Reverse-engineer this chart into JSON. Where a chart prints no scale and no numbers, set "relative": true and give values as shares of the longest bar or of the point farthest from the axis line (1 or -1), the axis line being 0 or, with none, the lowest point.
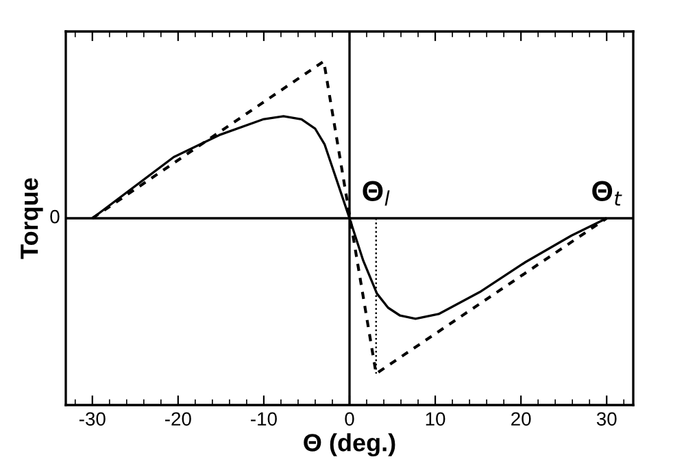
{
  "chart_data": {
    "type": "line",
    "relative": true,
    "xlabel": "Θ (deg.)",
    "ylabel": "Torque",
    "xlim": [
      -33.1,
      33.1
    ],
    "xticks": [
      -30,
      -20,
      -10,
      0,
      10,
      20,
      30
    ],
    "series": [
      {
        "color": "#000000",
        "line_style": "solid",
        "x": [
          -30,
          -20.5,
          -15.2,
          -10.1,
          -7.7,
          -5.6,
          -4,
          -2.9,
          -1.6,
          0,
          1.6,
          3.2,
          4.5,
          5.9,
          7.7,
          10.4,
          15.2,
          20.5,
          25.9,
          30
        ],
        "values": [
          0,
          0.39,
          0.53,
          0.63,
          0.65,
          0.63,
          0.57,
          0.47,
          0.26,
          0,
          -0.27,
          -0.48,
          -0.57,
          -0.62,
          -0.64,
          -0.61,
          -0.47,
          -0.28,
          -0.11,
          0
        ]
      },
      {
        "color": "#000000",
        "line_style": "dashed",
        "x": [
          -30,
          -3,
          3.1,
          30
        ],
        "values": [
          0,
          1,
          -0.99,
          0
        ]
      },
      {
        "color": "#000000",
        "line_style": "dotted",
        "x": [
          3.1,
          3.1
        ],
        "values": [
          0,
          -0.99
        ]
      }
    ],
    "ref_lines": [
      {
        "axis": "y",
        "value": 0,
        "label": "0",
        "color": "#000000"
      },
      {
        "axis": "x",
        "value": 0,
        "color": "#000000"
      }
    ],
    "annotations": [
      {
        "text": "Θ$_{l}$",
        "x": 3.1,
        "y": 0
      },
      {
        "text": "Θ$_{t}$",
        "x": 30,
        "y": 0
      }
    ],
    "grid": false,
    "legend": false
  }
}
